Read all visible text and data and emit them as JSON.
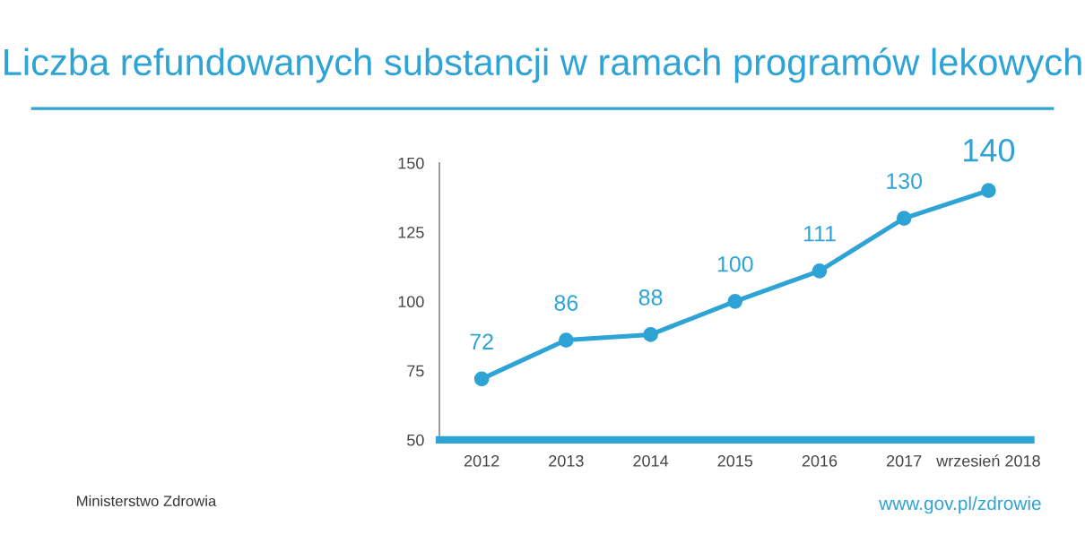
{
  "chart_data": {
    "type": "line",
    "title": "Liczba refundowanych substancji w ramach programów lekowych",
    "categories": [
      "2012",
      "2013",
      "2014",
      "2015",
      "2016",
      "2017",
      "wrzesień 2018"
    ],
    "series": [
      {
        "color": "#2ea3d5",
        "values": [
          72,
          86,
          88,
          100,
          111,
          130,
          140
        ]
      }
    ],
    "ylim": [
      50,
      150
    ],
    "yticks": [
      50,
      75,
      100,
      125,
      150
    ],
    "grid": false,
    "marker": "circle",
    "line_style": "solid",
    "data_labels": true,
    "annotations": [
      "Ministerstwo Zdrowia",
      "www.gov.pl/zdrowie"
    ]
  }
}
